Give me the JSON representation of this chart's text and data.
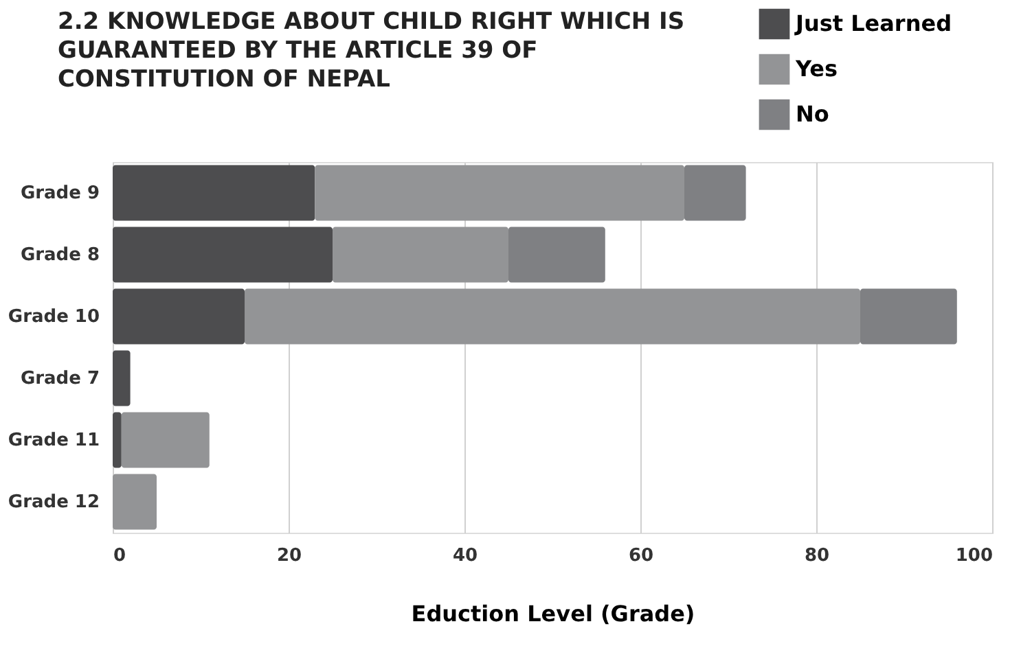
{
  "chart_data": {
    "type": "bar",
    "orientation": "horizontal",
    "stacked": true,
    "title": "2.2 KNOWLEDGE ABOUT CHILD RIGHT WHICH IS GUARANTEED BY THE ARTICLE 39 OF CONSTITUTION OF NEPAL",
    "xlabel": "Eduction Level (Grade)",
    "categories": [
      "Grade 9",
      "Grade 8",
      "Grade 10",
      "Grade 7",
      "Grade 11",
      "Grade 12"
    ],
    "series": [
      {
        "name": "Just Learned",
        "color": "#4d4d4f",
        "values": [
          23,
          25,
          15,
          2,
          1,
          0
        ]
      },
      {
        "name": "Yes",
        "color": "#939496",
        "values": [
          42,
          20,
          70,
          0,
          10,
          5
        ]
      },
      {
        "name": "No",
        "color": "#7f8083",
        "values": [
          7,
          11,
          11,
          0,
          0,
          0
        ]
      }
    ],
    "xlim": [
      0,
      100
    ],
    "xticks": [
      0,
      20,
      40,
      60,
      80,
      100
    ],
    "grid": "x",
    "legend": "top right"
  }
}
